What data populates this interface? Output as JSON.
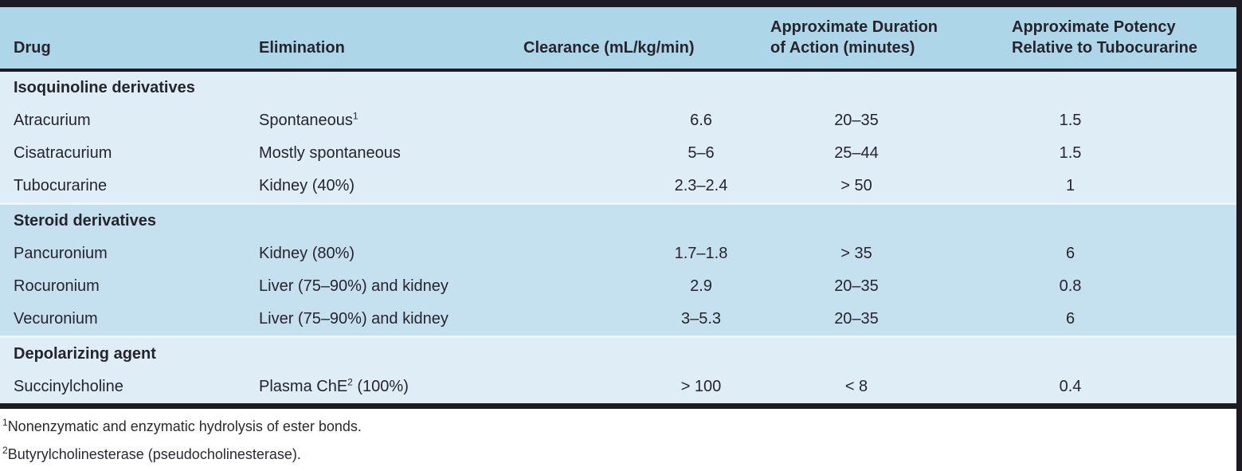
{
  "colors": {
    "rule": "#1d1a21",
    "header_band": "#aed6e9",
    "light_band": "#dfedf6",
    "medium_band": "#c5e1ef",
    "divider": "#eef6fa"
  },
  "table": {
    "columns": [
      {
        "label": "Drug"
      },
      {
        "label": "Elimination"
      },
      {
        "label": "Clearance (mL/kg/min)"
      },
      {
        "label": "Approximate Duration\nof Action (minutes)"
      },
      {
        "label": "Approximate Potency\nRelative to Tubocurarine"
      }
    ],
    "sections": [
      {
        "title": "Isoquinoline derivatives",
        "tone": "light",
        "rows": [
          {
            "drug": "Atracurium",
            "elimination": {
              "pre": "Spontaneous",
              "sup": "1",
              "post": ""
            },
            "clearance": "6.6",
            "duration": "20–35",
            "potency": "1.5"
          },
          {
            "drug": "Cisatracurium",
            "elimination": {
              "pre": "Mostly spontaneous",
              "sup": "",
              "post": ""
            },
            "clearance": "5–6",
            "duration": "25–44",
            "potency": "1.5"
          },
          {
            "drug": "Tubocurarine",
            "elimination": {
              "pre": "Kidney (40%)",
              "sup": "",
              "post": ""
            },
            "clearance": "2.3–2.4",
            "duration": "> 50",
            "potency": "1"
          }
        ]
      },
      {
        "title": "Steroid derivatives",
        "tone": "medium",
        "rows": [
          {
            "drug": "Pancuronium",
            "elimination": {
              "pre": "Kidney (80%)",
              "sup": "",
              "post": ""
            },
            "clearance": "1.7–1.8",
            "duration": "> 35",
            "potency": "6"
          },
          {
            "drug": "Rocuronium",
            "elimination": {
              "pre": "Liver (75–90%) and kidney",
              "sup": "",
              "post": ""
            },
            "clearance": "2.9",
            "duration": "20–35",
            "potency": "0.8"
          },
          {
            "drug": "Vecuronium",
            "elimination": {
              "pre": "Liver (75–90%) and kidney",
              "sup": "",
              "post": ""
            },
            "clearance": "3–5.3",
            "duration": "20–35",
            "potency": "6"
          }
        ]
      },
      {
        "title": "Depolarizing agent",
        "tone": "light",
        "rows": [
          {
            "drug": "Succinylcholine",
            "elimination": {
              "pre": "Plasma ChE",
              "sup": "2",
              "post": " (100%)"
            },
            "clearance": "> 100",
            "duration": "< 8",
            "potency": "0.4"
          }
        ]
      }
    ]
  },
  "footnotes": [
    {
      "marker": "1",
      "text": "Nonenzymatic and enzymatic hydrolysis of ester bonds."
    },
    {
      "marker": "2",
      "text": "Butyrylcholinesterase (pseudocholinesterase)."
    }
  ]
}
